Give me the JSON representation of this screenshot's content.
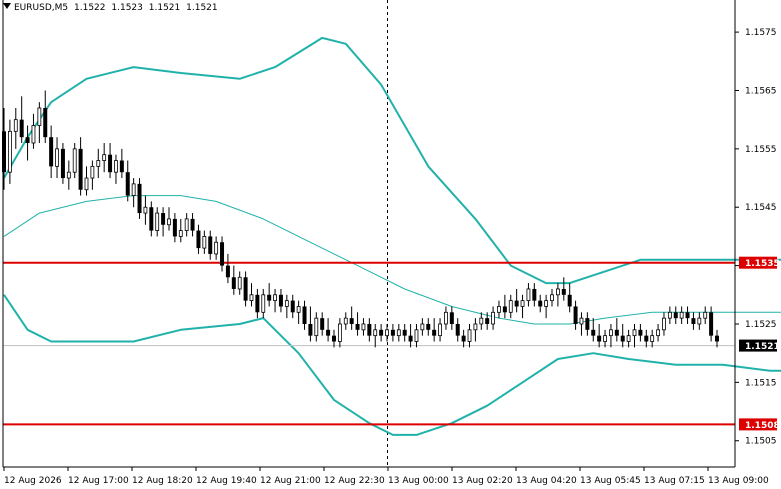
{
  "header": {
    "symbol": "EURUSD,M5",
    "open": "1.1522",
    "high": "1.1523",
    "low": "1.1521",
    "close": "1.1521",
    "dropdown_icon": "triangle-down-icon"
  },
  "colors": {
    "background": "#ffffff",
    "bollinger": "#20b2aa",
    "level_line": "#dd0000",
    "level_label_bg": "#dd0000",
    "current_price_bg": "#000000",
    "candle_bull": "#000000",
    "candle_bear": "#000000",
    "axis": "#000000",
    "grid": "#c0c0c0"
  },
  "chart_data": {
    "type": "candlestick",
    "symbol": "EURUSD",
    "timeframe": "M5",
    "ylim": [
      1.15005,
      1.15805
    ],
    "y_ticks": [
      "1.1575",
      "1.1565",
      "1.1555",
      "1.1545",
      "1.1535",
      "1.1525",
      "1.1515",
      "1.1505"
    ],
    "x_ticks": [
      "12 Aug 2026",
      "12 Aug 17:00",
      "12 Aug 18:20",
      "12 Aug 19:40",
      "12 Aug 21:00",
      "12 Aug 22:30",
      "13 Aug 00:00",
      "13 Aug 02:20",
      "13 Aug 04:20",
      "13 Aug 05:45",
      "13 Aug 07:15",
      "13 Aug 09:00"
    ],
    "day_separator": "13 Aug 00:00",
    "horizontal_levels": [
      {
        "label": "1.1535",
        "price": 1.15355
      },
      {
        "label": "1.1508",
        "price": 1.15078
      }
    ],
    "current_price": {
      "label": "1.1521",
      "price": 1.15213
    },
    "candles": [
      [
        1.1558,
        1.1562,
        1.1548,
        1.1551
      ],
      [
        1.1551,
        1.156,
        1.1549,
        1.1558
      ],
      [
        1.1558,
        1.1562,
        1.1555,
        1.156
      ],
      [
        1.156,
        1.1564,
        1.1556,
        1.1557
      ],
      [
        1.1557,
        1.1559,
        1.1553,
        1.1556
      ],
      [
        1.1556,
        1.1561,
        1.1555,
        1.1559
      ],
      [
        1.1559,
        1.1563,
        1.1556,
        1.1562
      ],
      [
        1.1562,
        1.1565,
        1.1556,
        1.1557
      ],
      [
        1.1557,
        1.1559,
        1.155,
        1.1552
      ],
      [
        1.1552,
        1.1557,
        1.155,
        1.1555
      ],
      [
        1.1555,
        1.1556,
        1.1549,
        1.155
      ],
      [
        1.155,
        1.1553,
        1.1548,
        1.1551
      ],
      [
        1.1551,
        1.1556,
        1.155,
        1.1555
      ],
      [
        1.1555,
        1.1557,
        1.1547,
        1.1548
      ],
      [
        1.1548,
        1.1552,
        1.1547,
        1.155
      ],
      [
        1.155,
        1.1553,
        1.1548,
        1.1552
      ],
      [
        1.1552,
        1.1555,
        1.155,
        1.1553
      ],
      [
        1.1553,
        1.1556,
        1.1551,
        1.1554
      ],
      [
        1.1554,
        1.1556,
        1.155,
        1.1551
      ],
      [
        1.1551,
        1.1554,
        1.1549,
        1.1553
      ],
      [
        1.1553,
        1.1555,
        1.155,
        1.1551
      ],
      [
        1.1551,
        1.1553,
        1.1546,
        1.1547
      ],
      [
        1.1547,
        1.155,
        1.1545,
        1.1549
      ],
      [
        1.1549,
        1.155,
        1.1543,
        1.1544
      ],
      [
        1.1544,
        1.1547,
        1.1542,
        1.1545
      ],
      [
        1.1545,
        1.1546,
        1.154,
        1.1541
      ],
      [
        1.1541,
        1.1545,
        1.154,
        1.1544
      ],
      [
        1.1544,
        1.1545,
        1.154,
        1.1542
      ],
      [
        1.1542,
        1.1545,
        1.1541,
        1.1543
      ],
      [
        1.1543,
        1.1544,
        1.1539,
        1.154
      ],
      [
        1.154,
        1.1543,
        1.1539,
        1.1541
      ],
      [
        1.1541,
        1.1544,
        1.154,
        1.1543
      ],
      [
        1.1543,
        1.1544,
        1.154,
        1.1541
      ],
      [
        1.1541,
        1.1542,
        1.1537,
        1.1538
      ],
      [
        1.1538,
        1.1541,
        1.1537,
        1.154
      ],
      [
        1.154,
        1.1541,
        1.1536,
        1.1537
      ],
      [
        1.1537,
        1.154,
        1.1536,
        1.1539
      ],
      [
        1.1539,
        1.154,
        1.1534,
        1.1535
      ],
      [
        1.1535,
        1.1537,
        1.1532,
        1.1533
      ],
      [
        1.1533,
        1.1535,
        1.153,
        1.1531
      ],
      [
        1.1531,
        1.1534,
        1.153,
        1.1533
      ],
      [
        1.1533,
        1.1534,
        1.1528,
        1.1529
      ],
      [
        1.1529,
        1.1532,
        1.1528,
        1.153
      ],
      [
        1.153,
        1.1531,
        1.1526,
        1.1527
      ],
      [
        1.1527,
        1.1531,
        1.1526,
        1.153
      ],
      [
        1.153,
        1.1532,
        1.1528,
        1.1529
      ],
      [
        1.1529,
        1.1531,
        1.1527,
        1.153
      ],
      [
        1.153,
        1.1531,
        1.1527,
        1.1528
      ],
      [
        1.1528,
        1.153,
        1.1526,
        1.1529
      ],
      [
        1.1529,
        1.153,
        1.1526,
        1.1527
      ],
      [
        1.1527,
        1.1529,
        1.1525,
        1.1528
      ],
      [
        1.1528,
        1.1529,
        1.1524,
        1.1525
      ],
      [
        1.1525,
        1.1528,
        1.1522,
        1.1523
      ],
      [
        1.1523,
        1.1527,
        1.1522,
        1.1526
      ],
      [
        1.1526,
        1.1527,
        1.1523,
        1.1524
      ],
      [
        1.1524,
        1.1526,
        1.1522,
        1.1523
      ],
      [
        1.1523,
        1.1524,
        1.1521,
        1.1522
      ],
      [
        1.1522,
        1.1526,
        1.1521,
        1.1525
      ],
      [
        1.1525,
        1.1527,
        1.1524,
        1.1526
      ],
      [
        1.1526,
        1.1528,
        1.1524,
        1.1525
      ],
      [
        1.1525,
        1.1527,
        1.1523,
        1.1524
      ],
      [
        1.1524,
        1.1526,
        1.1523,
        1.1525
      ],
      [
        1.1525,
        1.1526,
        1.1522,
        1.1523
      ],
      [
        1.1523,
        1.1525,
        1.1521,
        1.1524
      ],
      [
        1.1524,
        1.1525,
        1.1522,
        1.1523
      ],
      [
        1.1523,
        1.1525,
        1.1522,
        1.1524
      ],
      [
        1.1524,
        1.1525,
        1.1522,
        1.1523
      ],
      [
        1.1523,
        1.1525,
        1.1522,
        1.1524
      ],
      [
        1.1524,
        1.1525,
        1.1522,
        1.1523
      ],
      [
        1.1523,
        1.1525,
        1.1521,
        1.1522
      ],
      [
        1.1522,
        1.1525,
        1.1521,
        1.1524
      ],
      [
        1.1524,
        1.1526,
        1.1523,
        1.1525
      ],
      [
        1.1525,
        1.1526,
        1.1523,
        1.1524
      ],
      [
        1.1524,
        1.1526,
        1.1522,
        1.1523
      ],
      [
        1.1523,
        1.1526,
        1.1522,
        1.1525
      ],
      [
        1.1525,
        1.1528,
        1.1524,
        1.1527
      ],
      [
        1.1527,
        1.1528,
        1.1524,
        1.1525
      ],
      [
        1.1525,
        1.1526,
        1.1522,
        1.1523
      ],
      [
        1.1523,
        1.1524,
        1.1521,
        1.1522
      ],
      [
        1.1522,
        1.1525,
        1.1521,
        1.1524
      ],
      [
        1.1524,
        1.1526,
        1.1522,
        1.1525
      ],
      [
        1.1525,
        1.1527,
        1.1524,
        1.1526
      ],
      [
        1.1526,
        1.1527,
        1.1524,
        1.1525
      ],
      [
        1.1525,
        1.1528,
        1.1524,
        1.1527
      ],
      [
        1.1527,
        1.1529,
        1.1526,
        1.1528
      ],
      [
        1.1528,
        1.153,
        1.1526,
        1.1527
      ],
      [
        1.1527,
        1.153,
        1.1526,
        1.1529
      ],
      [
        1.1529,
        1.1531,
        1.1527,
        1.1528
      ],
      [
        1.1528,
        1.153,
        1.1526,
        1.1529
      ],
      [
        1.1529,
        1.1532,
        1.1528,
        1.1531
      ],
      [
        1.1531,
        1.1532,
        1.1528,
        1.1529
      ],
      [
        1.1529,
        1.153,
        1.1527,
        1.1528
      ],
      [
        1.1528,
        1.153,
        1.1526,
        1.1529
      ],
      [
        1.1529,
        1.1531,
        1.1528,
        1.153
      ],
      [
        1.153,
        1.1532,
        1.1528,
        1.1531
      ],
      [
        1.1531,
        1.1533,
        1.1529,
        1.153
      ],
      [
        1.153,
        1.1532,
        1.1527,
        1.1528
      ],
      [
        1.1528,
        1.1529,
        1.1524,
        1.1525
      ],
      [
        1.1525,
        1.1527,
        1.1523,
        1.1526
      ],
      [
        1.1526,
        1.1527,
        1.1523,
        1.1524
      ],
      [
        1.1524,
        1.1526,
        1.1522,
        1.1523
      ],
      [
        1.1523,
        1.1525,
        1.1521,
        1.1522
      ],
      [
        1.1522,
        1.1524,
        1.1521,
        1.1523
      ],
      [
        1.1523,
        1.1525,
        1.1521,
        1.1524
      ],
      [
        1.1524,
        1.1526,
        1.1522,
        1.1523
      ],
      [
        1.1523,
        1.1525,
        1.1521,
        1.1522
      ],
      [
        1.1522,
        1.1524,
        1.1521,
        1.1523
      ],
      [
        1.1523,
        1.1525,
        1.1521,
        1.1524
      ],
      [
        1.1524,
        1.1525,
        1.1522,
        1.1523
      ],
      [
        1.1523,
        1.1524,
        1.1521,
        1.1522
      ],
      [
        1.1522,
        1.1524,
        1.1521,
        1.1523
      ],
      [
        1.1523,
        1.1525,
        1.1522,
        1.1524
      ],
      [
        1.1524,
        1.1527,
        1.1523,
        1.1526
      ],
      [
        1.1526,
        1.1528,
        1.1525,
        1.1527
      ],
      [
        1.1527,
        1.1528,
        1.1525,
        1.1526
      ],
      [
        1.1526,
        1.1528,
        1.1525,
        1.1527
      ],
      [
        1.1527,
        1.1528,
        1.1525,
        1.1526
      ],
      [
        1.1526,
        1.1527,
        1.1524,
        1.1525
      ],
      [
        1.1525,
        1.1527,
        1.1524,
        1.1526
      ],
      [
        1.1526,
        1.1528,
        1.1525,
        1.1527
      ],
      [
        1.1527,
        1.1528,
        1.1522,
        1.1523
      ],
      [
        1.1523,
        1.1524,
        1.1521,
        1.1522
      ]
    ],
    "bollinger_upper": [
      [
        0,
        1.155
      ],
      [
        4,
        1.1557
      ],
      [
        8,
        1.1563
      ],
      [
        14,
        1.1567
      ],
      [
        22,
        1.1569
      ],
      [
        30,
        1.1568
      ],
      [
        40,
        1.1567
      ],
      [
        46,
        1.1569
      ],
      [
        54,
        1.1574
      ],
      [
        58,
        1.1573
      ],
      [
        64,
        1.1566
      ],
      [
        72,
        1.1552
      ],
      [
        80,
        1.1543
      ],
      [
        86,
        1.1535
      ],
      [
        92,
        1.1532
      ],
      [
        96,
        1.1532
      ],
      [
        102,
        1.1534
      ],
      [
        108,
        1.1536
      ],
      [
        120,
        1.1536
      ],
      [
        132,
        1.1536
      ],
      [
        138,
        1.1535
      ]
    ],
    "bollinger_middle": [
      [
        0,
        1.154
      ],
      [
        6,
        1.1544
      ],
      [
        14,
        1.1546
      ],
      [
        22,
        1.1547
      ],
      [
        30,
        1.1547
      ],
      [
        36,
        1.1546
      ],
      [
        44,
        1.1543
      ],
      [
        52,
        1.1539
      ],
      [
        60,
        1.1535
      ],
      [
        68,
        1.1531
      ],
      [
        76,
        1.1528
      ],
      [
        84,
        1.1526
      ],
      [
        90,
        1.1525
      ],
      [
        96,
        1.1525
      ],
      [
        102,
        1.1526
      ],
      [
        110,
        1.1527
      ],
      [
        118,
        1.1527
      ],
      [
        126,
        1.1527
      ],
      [
        132,
        1.1527
      ],
      [
        138,
        1.1526
      ]
    ],
    "bollinger_lower": [
      [
        0,
        1.153
      ],
      [
        4,
        1.1524
      ],
      [
        8,
        1.1522
      ],
      [
        14,
        1.1522
      ],
      [
        22,
        1.1522
      ],
      [
        30,
        1.1524
      ],
      [
        40,
        1.1525
      ],
      [
        44,
        1.1526
      ],
      [
        50,
        1.152
      ],
      [
        56,
        1.1512
      ],
      [
        62,
        1.1508
      ],
      [
        66,
        1.1506
      ],
      [
        70,
        1.1506
      ],
      [
        76,
        1.1508
      ],
      [
        82,
        1.1511
      ],
      [
        88,
        1.1515
      ],
      [
        94,
        1.1519
      ],
      [
        100,
        1.152
      ],
      [
        106,
        1.1519
      ],
      [
        114,
        1.1518
      ],
      [
        122,
        1.1518
      ],
      [
        130,
        1.1517
      ],
      [
        138,
        1.1517
      ]
    ]
  }
}
